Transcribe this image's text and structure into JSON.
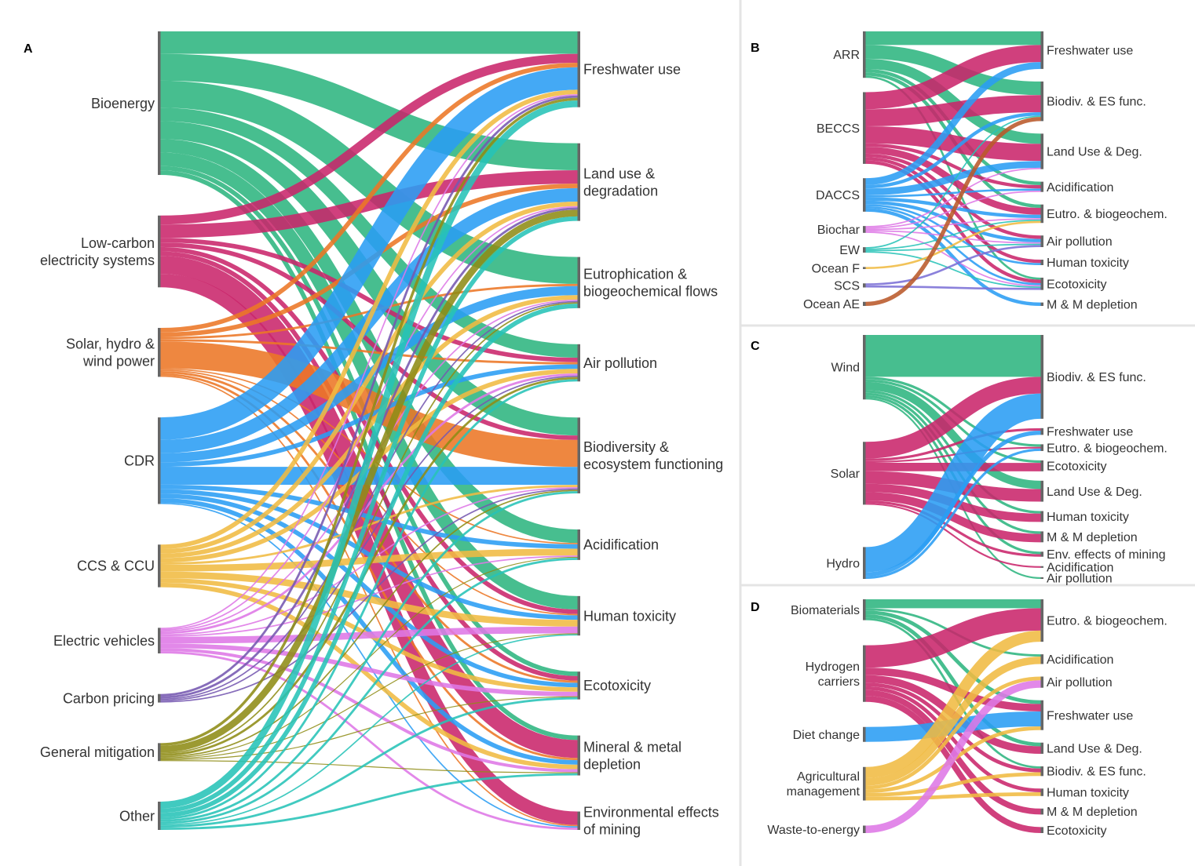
{
  "figure": {
    "panels": [
      {
        "id": "A",
        "sources": [
          {
            "key": "bio",
            "label": "Bioenergy",
            "color": "#2db57f"
          },
          {
            "key": "lce",
            "label": "Low-carbon\nelectricity systems",
            "color": "#c9266b"
          },
          {
            "key": "shw",
            "label": "Solar, hydro &\nwind power",
            "color": "#ec7625"
          },
          {
            "key": "cdr",
            "label": "CDR",
            "color": "#2a9df4"
          },
          {
            "key": "ccs",
            "label": "CCS & CCU",
            "color": "#f0bb42"
          },
          {
            "key": "ev",
            "label": "Electric vehicles",
            "color": "#de77e6"
          },
          {
            "key": "cp",
            "label": "Carbon pricing",
            "color": "#7558b0"
          },
          {
            "key": "gm",
            "label": "General mitigation",
            "color": "#8e8c16"
          },
          {
            "key": "oth",
            "label": "Other",
            "color": "#27c3b7"
          }
        ],
        "targets": [
          {
            "key": "fw",
            "label": "Freshwater use"
          },
          {
            "key": "lu",
            "label": "Land use &\ndegradation"
          },
          {
            "key": "eu",
            "label": "Eutrophication &\nbiogeochemical flows"
          },
          {
            "key": "ap",
            "label": "Air pollution"
          },
          {
            "key": "bd",
            "label": "Biodiversity &\necosystem functioning"
          },
          {
            "key": "ac",
            "label": "Acidification"
          },
          {
            "key": "ht",
            "label": "Human toxicity"
          },
          {
            "key": "et",
            "label": "Ecotoxicity"
          },
          {
            "key": "mm",
            "label": "Mineral & metal\ndepletion"
          },
          {
            "key": "em",
            "label": "Environmental effects\nof mining"
          }
        ],
        "links": [
          [
            "bio",
            "fw",
            5
          ],
          [
            "bio",
            "lu",
            6
          ],
          [
            "bio",
            "eu",
            6
          ],
          [
            "bio",
            "ap",
            3
          ],
          [
            "bio",
            "bd",
            4
          ],
          [
            "bio",
            "ac",
            3
          ],
          [
            "bio",
            "ht",
            3
          ],
          [
            "bio",
            "et",
            1
          ],
          [
            "bio",
            "mm",
            1
          ],
          [
            "lce",
            "fw",
            2
          ],
          [
            "lce",
            "lu",
            3
          ],
          [
            "lce",
            "ap",
            1
          ],
          [
            "lce",
            "bd",
            1
          ],
          [
            "lce",
            "ht",
            1
          ],
          [
            "lce",
            "et",
            1
          ],
          [
            "lce",
            "mm",
            4
          ],
          [
            "lce",
            "em",
            3
          ],
          [
            "shw",
            "fw",
            1
          ],
          [
            "shw",
            "lu",
            1
          ],
          [
            "shw",
            "eu",
            0.5
          ],
          [
            "shw",
            "ap",
            0.5
          ],
          [
            "shw",
            "bd",
            6
          ],
          [
            "shw",
            "ac",
            0.3
          ],
          [
            "shw",
            "ht",
            0.3
          ],
          [
            "shw",
            "et",
            0.5
          ],
          [
            "shw",
            "mm",
            0.5
          ],
          [
            "shw",
            "em",
            0.3
          ],
          [
            "cdr",
            "fw",
            5
          ],
          [
            "cdr",
            "lu",
            3
          ],
          [
            "cdr",
            "eu",
            2
          ],
          [
            "cdr",
            "ap",
            1
          ],
          [
            "cdr",
            "bd",
            4
          ],
          [
            "cdr",
            "ac",
            1
          ],
          [
            "cdr",
            "ht",
            1
          ],
          [
            "cdr",
            "et",
            1
          ],
          [
            "cdr",
            "mm",
            1
          ],
          [
            "cdr",
            "em",
            0.3
          ],
          [
            "ccs",
            "fw",
            1
          ],
          [
            "ccs",
            "lu",
            1
          ],
          [
            "ccs",
            "eu",
            1
          ],
          [
            "ccs",
            "ap",
            1
          ],
          [
            "ccs",
            "bd",
            0.5
          ],
          [
            "ccs",
            "ac",
            1.5
          ],
          [
            "ccs",
            "ht",
            1.5
          ],
          [
            "ccs",
            "et",
            1
          ],
          [
            "ccs",
            "mm",
            1
          ],
          [
            "ev",
            "fw",
            0.3
          ],
          [
            "ev",
            "lu",
            0.3
          ],
          [
            "ev",
            "eu",
            0.3
          ],
          [
            "ev",
            "ap",
            0.5
          ],
          [
            "ev",
            "bd",
            0.3
          ],
          [
            "ev",
            "ac",
            0.3
          ],
          [
            "ev",
            "ht",
            1.5
          ],
          [
            "ev",
            "et",
            1
          ],
          [
            "ev",
            "mm",
            0.7
          ],
          [
            "ev",
            "em",
            0.5
          ],
          [
            "cp",
            "fw",
            0.5
          ],
          [
            "cp",
            "lu",
            0.5
          ],
          [
            "cp",
            "eu",
            0.3
          ],
          [
            "cp",
            "ap",
            0.3
          ],
          [
            "cp",
            "bd",
            0.3
          ],
          [
            "gm",
            "fw",
            0.6
          ],
          [
            "gm",
            "lu",
            1.5
          ],
          [
            "gm",
            "eu",
            0.3
          ],
          [
            "gm",
            "ap",
            0.5
          ],
          [
            "gm",
            "bd",
            0.3
          ],
          [
            "gm",
            "ac",
            0.2
          ],
          [
            "gm",
            "ht",
            0.2
          ],
          [
            "gm",
            "et",
            0.2
          ],
          [
            "gm",
            "mm",
            0.2
          ],
          [
            "oth",
            "fw",
            1.5
          ],
          [
            "oth",
            "lu",
            1
          ],
          [
            "oth",
            "eu",
            1
          ],
          [
            "oth",
            "ap",
            0.5
          ],
          [
            "oth",
            "bd",
            0.5
          ],
          [
            "oth",
            "ac",
            0.5
          ],
          [
            "oth",
            "ht",
            0.3
          ],
          [
            "oth",
            "et",
            0.5
          ],
          [
            "oth",
            "mm",
            0.5
          ]
        ]
      },
      {
        "id": "B",
        "sources": [
          {
            "key": "arr",
            "label": "ARR",
            "color": "#2db57f"
          },
          {
            "key": "beccs",
            "label": "BECCS",
            "color": "#c9266b"
          },
          {
            "key": "daccs",
            "label": "DACCS",
            "color": "#2a9df4"
          },
          {
            "key": "bch",
            "label": "Biochar",
            "color": "#de77e6"
          },
          {
            "key": "ew",
            "label": "EW",
            "color": "#27c3b7"
          },
          {
            "key": "of",
            "label": "Ocean F",
            "color": "#f0bb42"
          },
          {
            "key": "scs",
            "label": "SCS",
            "color": "#7b6fd6"
          },
          {
            "key": "oae",
            "label": "Ocean AE",
            "color": "#b9592a"
          }
        ],
        "targets": [
          {
            "key": "fw",
            "label": "Freshwater use"
          },
          {
            "key": "bd",
            "label": "Biodiv. & ES func."
          },
          {
            "key": "lu",
            "label": "Land Use & Deg."
          },
          {
            "key": "ac",
            "label": "Acidification"
          },
          {
            "key": "eu",
            "label": "Eutro. & biogeochem."
          },
          {
            "key": "ap",
            "label": "Air pollution"
          },
          {
            "key": "ht",
            "label": "Human toxicity"
          },
          {
            "key": "et",
            "label": "Ecotoxicity"
          },
          {
            "key": "mm",
            "label": "M & M depletion"
          }
        ],
        "links": [
          [
            "arr",
            "fw",
            2
          ],
          [
            "arr",
            "bd",
            2
          ],
          [
            "arr",
            "lu",
            1.5
          ],
          [
            "arr",
            "ac",
            0.5
          ],
          [
            "arr",
            "eu",
            0.5
          ],
          [
            "arr",
            "et",
            0.3
          ],
          [
            "beccs",
            "fw",
            2.5
          ],
          [
            "beccs",
            "bd",
            2.5
          ],
          [
            "beccs",
            "lu",
            2.5
          ],
          [
            "beccs",
            "ac",
            0.5
          ],
          [
            "beccs",
            "eu",
            1
          ],
          [
            "beccs",
            "ap",
            0.5
          ],
          [
            "beccs",
            "ht",
            0.5
          ],
          [
            "beccs",
            "et",
            0.5
          ],
          [
            "daccs",
            "fw",
            1
          ],
          [
            "daccs",
            "bd",
            0.5
          ],
          [
            "daccs",
            "lu",
            1
          ],
          [
            "daccs",
            "ac",
            0.3
          ],
          [
            "daccs",
            "eu",
            0.5
          ],
          [
            "daccs",
            "ap",
            0.5
          ],
          [
            "daccs",
            "ht",
            0.3
          ],
          [
            "daccs",
            "et",
            0.3
          ],
          [
            "daccs",
            "mm",
            0.5
          ],
          [
            "bch",
            "lu",
            0.2
          ],
          [
            "bch",
            "ac",
            0.2
          ],
          [
            "bch",
            "eu",
            0.2
          ],
          [
            "bch",
            "ap",
            0.2
          ],
          [
            "bch",
            "et",
            0.2
          ],
          [
            "ew",
            "bd",
            0.2
          ],
          [
            "ew",
            "eu",
            0.2
          ],
          [
            "ew",
            "ap",
            0.2
          ],
          [
            "ew",
            "et",
            0.2
          ],
          [
            "of",
            "eu",
            0.3
          ],
          [
            "scs",
            "ap",
            0.3
          ],
          [
            "scs",
            "et",
            0.3
          ],
          [
            "oae",
            "bd",
            0.6
          ]
        ]
      },
      {
        "id": "C",
        "sources": [
          {
            "key": "wind",
            "label": "Wind",
            "color": "#2db57f"
          },
          {
            "key": "solar",
            "label": "Solar",
            "color": "#c9266b"
          },
          {
            "key": "hydro",
            "label": "Hydro",
            "color": "#2a9df4"
          }
        ],
        "targets": [
          {
            "key": "bd",
            "label": "Biodiv. & ES func."
          },
          {
            "key": "fw",
            "label": "Freshwater use"
          },
          {
            "key": "eu",
            "label": "Eutro. & biogeochem."
          },
          {
            "key": "et",
            "label": "Ecotoxicity"
          },
          {
            "key": "lu",
            "label": "Land Use & Deg."
          },
          {
            "key": "ht",
            "label": "Human toxicity"
          },
          {
            "key": "mm",
            "label": "M & M depletion"
          },
          {
            "key": "em",
            "label": "Env. effects of mining"
          },
          {
            "key": "ac",
            "label": "Acidification"
          },
          {
            "key": "ap",
            "label": "Air pollution"
          }
        ],
        "links": [
          [
            "wind",
            "bd",
            5
          ],
          [
            "wind",
            "eu",
            0.3
          ],
          [
            "wind",
            "et",
            0.3
          ],
          [
            "wind",
            "lu",
            1
          ],
          [
            "wind",
            "ht",
            0.3
          ],
          [
            "wind",
            "mm",
            0.3
          ],
          [
            "wind",
            "em",
            0.3
          ],
          [
            "wind",
            "ap",
            0.2
          ],
          [
            "solar",
            "bd",
            2
          ],
          [
            "solar",
            "fw",
            0.3
          ],
          [
            "solar",
            "eu",
            0.2
          ],
          [
            "solar",
            "et",
            1
          ],
          [
            "solar",
            "lu",
            1.5
          ],
          [
            "solar",
            "ht",
            1
          ],
          [
            "solar",
            "mm",
            1
          ],
          [
            "solar",
            "em",
            0.3
          ],
          [
            "solar",
            "ac",
            0.2
          ],
          [
            "hydro",
            "bd",
            3
          ],
          [
            "hydro",
            "fw",
            0.5
          ],
          [
            "hydro",
            "eu",
            0.3
          ]
        ]
      },
      {
        "id": "D",
        "sources": [
          {
            "key": "bm",
            "label": "Biomaterials",
            "color": "#2db57f"
          },
          {
            "key": "hc",
            "label": "Hydrogen\ncarriers",
            "color": "#c9266b"
          },
          {
            "key": "dc",
            "label": "Diet change",
            "color": "#2a9df4"
          },
          {
            "key": "am",
            "label": "Agricultural\nmanagement",
            "color": "#f0bb42"
          },
          {
            "key": "wte",
            "label": "Waste-to-energy",
            "color": "#de77e6"
          }
        ],
        "targets": [
          {
            "key": "eu",
            "label": "Eutro. & biogeochem."
          },
          {
            "key": "ac",
            "label": "Acidification"
          },
          {
            "key": "ap",
            "label": "Air pollution"
          },
          {
            "key": "fw",
            "label": "Freshwater use"
          },
          {
            "key": "lu",
            "label": "Land Use & Deg."
          },
          {
            "key": "bd",
            "label": "Biodiv. & ES func."
          },
          {
            "key": "ht",
            "label": "Human toxicity"
          },
          {
            "key": "mm",
            "label": "M & M depletion"
          },
          {
            "key": "et",
            "label": "Ecotoxicity"
          }
        ],
        "links": [
          [
            "bm",
            "eu",
            1.2
          ],
          [
            "bm",
            "ac",
            0.3
          ],
          [
            "bm",
            "fw",
            0.5
          ],
          [
            "bm",
            "lu",
            0.5
          ],
          [
            "bm",
            "bd",
            0.3
          ],
          [
            "hc",
            "eu",
            3
          ],
          [
            "hc",
            "fw",
            1
          ],
          [
            "hc",
            "lu",
            1
          ],
          [
            "hc",
            "bd",
            0.5
          ],
          [
            "hc",
            "ht",
            0.5
          ],
          [
            "hc",
            "mm",
            0.8
          ],
          [
            "hc",
            "et",
            0.8
          ],
          [
            "dc",
            "fw",
            2
          ],
          [
            "am",
            "eu",
            1.5
          ],
          [
            "am",
            "ac",
            1
          ],
          [
            "am",
            "ap",
            0.5
          ],
          [
            "am",
            "fw",
            0.5
          ],
          [
            "am",
            "bd",
            0.5
          ],
          [
            "am",
            "ht",
            0.5
          ],
          [
            "wte",
            "ap",
            1
          ]
        ]
      }
    ]
  }
}
